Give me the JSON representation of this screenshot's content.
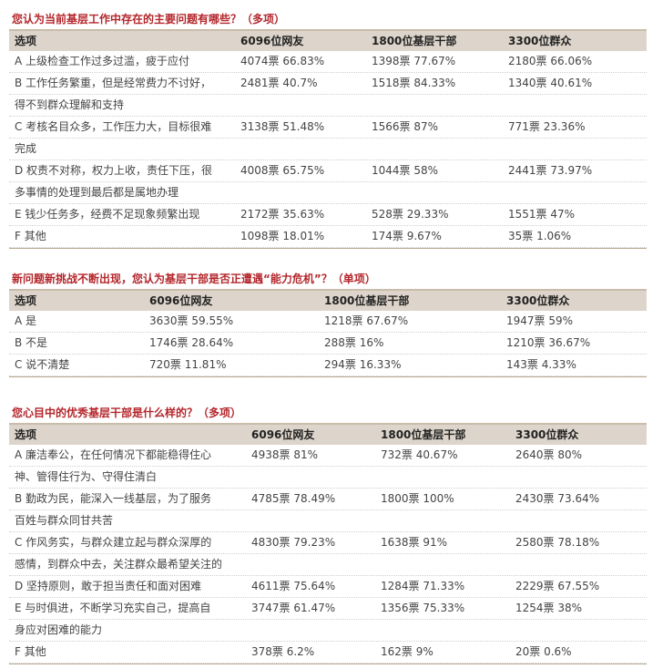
{
  "q1": {
    "title": "您认为当前基层工作中存在的主要问题有哪些？（多项）",
    "headers": [
      "选项",
      "6096位网友",
      "1800位基层干部",
      "3300位群众"
    ],
    "rows": [
      {
        "opt": [
          "A  上级检查工作过多过滥，疲于应付"
        ],
        "c1": "4074票  66.83%",
        "c2": "1398票  77.67%",
        "c3": "2180票  66.06%"
      },
      {
        "opt": [
          "B  工作任务繁重，但是经常费力不讨好，",
          "得不到群众理解和支持"
        ],
        "c1": "2481票  40.7%",
        "c2": "1518票  84.33%",
        "c3": "1340票  40.61%"
      },
      {
        "opt": [
          "C  考核名目众多，工作压力大，目标很难",
          "完成"
        ],
        "c1": "3138票  51.48%",
        "c2": "1566票  87%",
        "c3": "771票  23.36%"
      },
      {
        "opt": [
          "D  权责不对称，权力上收，责任下压，很",
          "多事情的处理到最后都是属地办理"
        ],
        "c1": "4008票  65.75%",
        "c2": "1044票  58%",
        "c3": "2441票  73.97%"
      },
      {
        "opt": [
          "E  钱少任务多，经费不足现象频繁出现"
        ],
        "c1": "2172票  35.63%",
        "c2": "528票  29.33%",
        "c3": "1551票  47%"
      },
      {
        "opt": [
          "F  其他"
        ],
        "c1": "1098票  18.01%",
        "c2": "174票  9.67%",
        "c3": "35票  1.06%"
      }
    ]
  },
  "q2": {
    "title": "新问题新挑战不断出现，您认为基层干部是否正遭遇“能力危机”？（单项）",
    "headers": [
      "选项",
      "6096位网友",
      "1800位基层干部",
      "3300位群众"
    ],
    "rows": [
      {
        "opt": [
          "A  是"
        ],
        "c1": "3630票  59.55%",
        "c2": "1218票 67.67%",
        "c3": "1947票  59%"
      },
      {
        "opt": [
          "B  不是"
        ],
        "c1": "1746票  28.64%",
        "c2": "288票  16%",
        "c3": "1210票  36.67%"
      },
      {
        "opt": [
          "C  说不清楚"
        ],
        "c1": "720票   11.81%",
        "c2": "294票  16.33%",
        "c3": "143票  4.33%"
      }
    ]
  },
  "q3": {
    "title": "您心目中的优秀基层干部是什么样的？（多项）",
    "headers": [
      "选项",
      "6096位网友",
      "1800位基层干部",
      "3300位群众"
    ],
    "rows": [
      {
        "opt": [
          "A  廉洁奉公，在任何情况下都能稳得住心",
          "神、管得住行为、守得住清白"
        ],
        "c1": "4938票   81%",
        "c2": "732票  40.67%",
        "c3": "2640票  80%"
      },
      {
        "opt": [
          "B  勤政为民，能深入一线基层，为了服务",
          "百姓与群众同甘共苦"
        ],
        "c1": "4785票  78.49%",
        "c2": "1800票  100%",
        "c3": "2430票  73.64%"
      },
      {
        "opt": [
          "C  作风务实，与群众建立起与群众深厚的",
          "感情，到群众中去，关注群众最希望关注的"
        ],
        "c1": "4830票  79.23%",
        "c2": "1638票  91%",
        "c3": "2580票  78.18%"
      },
      {
        "opt": [
          "D  坚持原则，敢于担当责任和面对困难"
        ],
        "c1": "4611票  75.64%",
        "c2": "1284票  71.33%",
        "c3": "2229票  67.55%"
      },
      {
        "opt": [
          "E  与时俱进，不断学习充实自己，提高自",
          "身应对困难的能力"
        ],
        "c1": "3747票  61.47%",
        "c2": "1356票  75.33%",
        "c3": "1254票  38%"
      },
      {
        "opt": [
          "F  其他"
        ],
        "c1": "378票   6.2%",
        "c2": "162票   9%",
        "c3": "20票  0.6%"
      }
    ]
  }
}
